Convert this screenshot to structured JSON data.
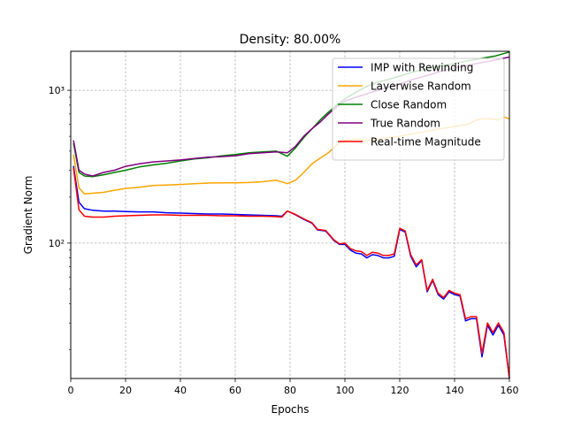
{
  "chart_data": {
    "type": "line",
    "title": "Density: 80.00%",
    "xlabel": "Epochs",
    "ylabel": "Gradient Norm",
    "xlim": [
      0,
      160
    ],
    "ylim": [
      13,
      1800
    ],
    "yscale": "log",
    "grid": true,
    "legend_position": "top-right",
    "x_ticks": [
      0,
      20,
      40,
      60,
      80,
      100,
      120,
      140,
      160
    ],
    "x_tick_labels": [
      "0",
      "20",
      "40",
      "60",
      "80",
      "100",
      "120",
      "140",
      "160"
    ],
    "y_ticks": [
      100,
      1000
    ],
    "y_tick_labels": [
      "10²",
      "10³"
    ],
    "series": [
      {
        "name": "IMP with Rewinding",
        "color": "#0000ff",
        "points": [
          [
            1,
            320
          ],
          [
            3,
            185
          ],
          [
            5,
            168
          ],
          [
            8,
            164
          ],
          [
            12,
            162
          ],
          [
            16,
            162
          ],
          [
            20,
            161
          ],
          [
            25,
            160
          ],
          [
            30,
            160
          ],
          [
            35,
            158
          ],
          [
            40,
            157
          ],
          [
            45,
            156
          ],
          [
            50,
            155
          ],
          [
            55,
            155
          ],
          [
            60,
            154
          ],
          [
            65,
            153
          ],
          [
            70,
            152
          ],
          [
            75,
            151
          ],
          [
            77,
            150
          ],
          [
            79,
            162
          ],
          [
            82,
            153
          ],
          [
            85,
            143
          ],
          [
            88,
            135
          ],
          [
            90,
            122
          ],
          [
            93,
            120
          ],
          [
            96,
            104
          ],
          [
            98,
            98
          ],
          [
            100,
            98
          ],
          [
            102,
            90
          ],
          [
            104,
            86
          ],
          [
            106,
            85
          ],
          [
            108,
            80
          ],
          [
            110,
            84
          ],
          [
            112,
            83
          ],
          [
            114,
            80
          ],
          [
            116,
            80
          ],
          [
            118,
            82
          ],
          [
            120,
            123
          ],
          [
            122,
            118
          ],
          [
            124,
            82
          ],
          [
            126,
            70
          ],
          [
            128,
            77
          ],
          [
            130,
            48
          ],
          [
            132,
            57
          ],
          [
            134,
            46
          ],
          [
            136,
            43
          ],
          [
            138,
            48
          ],
          [
            140,
            46
          ],
          [
            142,
            45
          ],
          [
            144,
            31
          ],
          [
            146,
            32
          ],
          [
            148,
            32
          ],
          [
            150,
            18
          ],
          [
            152,
            29
          ],
          [
            154,
            25
          ],
          [
            156,
            29
          ],
          [
            158,
            25
          ],
          [
            160,
            13
          ]
        ]
      },
      {
        "name": "Layerwise Random",
        "color": "#ffa500",
        "points": [
          [
            1,
            380
          ],
          [
            3,
            230
          ],
          [
            5,
            210
          ],
          [
            8,
            212
          ],
          [
            12,
            215
          ],
          [
            16,
            222
          ],
          [
            20,
            228
          ],
          [
            25,
            232
          ],
          [
            30,
            238
          ],
          [
            35,
            240
          ],
          [
            40,
            242
          ],
          [
            45,
            245
          ],
          [
            50,
            247
          ],
          [
            55,
            248
          ],
          [
            60,
            248
          ],
          [
            65,
            249
          ],
          [
            70,
            252
          ],
          [
            75,
            258
          ],
          [
            79,
            245
          ],
          [
            82,
            258
          ],
          [
            85,
            290
          ],
          [
            88,
            330
          ],
          [
            91,
            360
          ],
          [
            94,
            390
          ],
          [
            97,
            440
          ],
          [
            100,
            470
          ],
          [
            104,
            480
          ],
          [
            108,
            470
          ],
          [
            112,
            480
          ],
          [
            116,
            490
          ],
          [
            120,
            500
          ],
          [
            125,
            520
          ],
          [
            130,
            540
          ],
          [
            135,
            560
          ],
          [
            140,
            580
          ],
          [
            145,
            600
          ],
          [
            148,
            640
          ],
          [
            150,
            650
          ],
          [
            153,
            650
          ],
          [
            156,
            640
          ],
          [
            158,
            670
          ],
          [
            160,
            650
          ]
        ]
      },
      {
        "name": "Close Random",
        "color": "#008000",
        "points": [
          [
            1,
            450
          ],
          [
            3,
            290
          ],
          [
            5,
            275
          ],
          [
            8,
            272
          ],
          [
            12,
            280
          ],
          [
            16,
            290
          ],
          [
            20,
            300
          ],
          [
            25,
            315
          ],
          [
            30,
            325
          ],
          [
            35,
            333
          ],
          [
            40,
            345
          ],
          [
            45,
            355
          ],
          [
            50,
            362
          ],
          [
            55,
            372
          ],
          [
            60,
            380
          ],
          [
            65,
            390
          ],
          [
            70,
            395
          ],
          [
            75,
            400
          ],
          [
            79,
            370
          ],
          [
            82,
            420
          ],
          [
            85,
            490
          ],
          [
            88,
            560
          ],
          [
            91,
            640
          ],
          [
            94,
            720
          ],
          [
            97,
            800
          ],
          [
            100,
            880
          ],
          [
            104,
            970
          ],
          [
            108,
            1060
          ],
          [
            112,
            1130
          ],
          [
            116,
            1180
          ],
          [
            120,
            1240
          ],
          [
            125,
            1320
          ],
          [
            130,
            1380
          ],
          [
            135,
            1440
          ],
          [
            140,
            1500
          ],
          [
            145,
            1560
          ],
          [
            150,
            1620
          ],
          [
            155,
            1680
          ],
          [
            160,
            1780
          ]
        ]
      },
      {
        "name": "True Random",
        "color": "#800080",
        "points": [
          [
            1,
            470
          ],
          [
            3,
            300
          ],
          [
            5,
            283
          ],
          [
            8,
            275
          ],
          [
            12,
            290
          ],
          [
            16,
            300
          ],
          [
            20,
            318
          ],
          [
            25,
            330
          ],
          [
            30,
            340
          ],
          [
            35,
            345
          ],
          [
            40,
            350
          ],
          [
            45,
            358
          ],
          [
            50,
            365
          ],
          [
            55,
            368
          ],
          [
            60,
            372
          ],
          [
            65,
            385
          ],
          [
            70,
            390
          ],
          [
            75,
            395
          ],
          [
            79,
            390
          ],
          [
            82,
            430
          ],
          [
            85,
            500
          ],
          [
            88,
            560
          ],
          [
            91,
            620
          ],
          [
            94,
            700
          ],
          [
            97,
            780
          ],
          [
            100,
            850
          ],
          [
            104,
            900
          ],
          [
            108,
            950
          ],
          [
            112,
            1000
          ],
          [
            116,
            1050
          ],
          [
            120,
            1100
          ],
          [
            125,
            1180
          ],
          [
            130,
            1250
          ],
          [
            135,
            1330
          ],
          [
            140,
            1400
          ],
          [
            145,
            1460
          ],
          [
            150,
            1520
          ],
          [
            155,
            1580
          ],
          [
            160,
            1650
          ]
        ]
      },
      {
        "name": "Real-time Magnitude",
        "color": "#ff0000",
        "points": [
          [
            1,
            310
          ],
          [
            3,
            165
          ],
          [
            5,
            150
          ],
          [
            8,
            148
          ],
          [
            12,
            148
          ],
          [
            16,
            150
          ],
          [
            20,
            151
          ],
          [
            25,
            152
          ],
          [
            30,
            153
          ],
          [
            35,
            153
          ],
          [
            40,
            152
          ],
          [
            45,
            152
          ],
          [
            50,
            152
          ],
          [
            55,
            151
          ],
          [
            60,
            151
          ],
          [
            65,
            150
          ],
          [
            70,
            150
          ],
          [
            75,
            149
          ],
          [
            77,
            148
          ],
          [
            79,
            162
          ],
          [
            82,
            154
          ],
          [
            85,
            144
          ],
          [
            88,
            136
          ],
          [
            90,
            123
          ],
          [
            93,
            121
          ],
          [
            96,
            105
          ],
          [
            98,
            99
          ],
          [
            100,
            100
          ],
          [
            102,
            92
          ],
          [
            104,
            89
          ],
          [
            106,
            88
          ],
          [
            108,
            83
          ],
          [
            110,
            87
          ],
          [
            112,
            86
          ],
          [
            114,
            83
          ],
          [
            116,
            83
          ],
          [
            118,
            85
          ],
          [
            120,
            125
          ],
          [
            122,
            120
          ],
          [
            124,
            84
          ],
          [
            126,
            72
          ],
          [
            128,
            78
          ],
          [
            130,
            49
          ],
          [
            132,
            58
          ],
          [
            134,
            47
          ],
          [
            136,
            44
          ],
          [
            138,
            49
          ],
          [
            140,
            47
          ],
          [
            142,
            46
          ],
          [
            144,
            32
          ],
          [
            146,
            33
          ],
          [
            148,
            33
          ],
          [
            150,
            19
          ],
          [
            152,
            30
          ],
          [
            154,
            26
          ],
          [
            156,
            30
          ],
          [
            158,
            26
          ],
          [
            160,
            13
          ]
        ]
      }
    ]
  }
}
